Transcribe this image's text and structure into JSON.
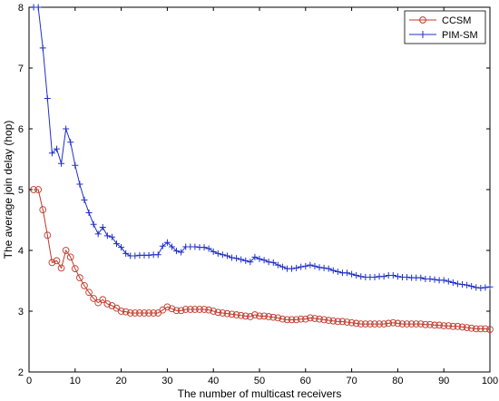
{
  "chart_data": {
    "type": "line",
    "title": "",
    "xlabel": "The number of multicast receivers",
    "ylabel": "The average join delay (hop)",
    "xlim": [
      0,
      100
    ],
    "ylim": [
      2,
      8
    ],
    "xticks": [
      0,
      10,
      20,
      30,
      40,
      50,
      60,
      70,
      80,
      90,
      100
    ],
    "yticks": [
      2,
      3,
      4,
      5,
      6,
      7,
      8
    ],
    "grid": false,
    "legend_position": "top-right",
    "colors": {
      "CCSM": "#c0392b",
      "PIM-SM": "#1f2fc8"
    },
    "series": [
      {
        "name": "CCSM",
        "marker": "circle",
        "x": [
          1,
          2,
          3,
          4,
          5,
          6,
          7,
          8,
          9,
          10,
          11,
          12,
          13,
          14,
          15,
          16,
          17,
          18,
          19,
          20,
          21,
          22,
          23,
          24,
          25,
          26,
          27,
          28,
          29,
          30,
          31,
          32,
          33,
          34,
          35,
          36,
          37,
          38,
          39,
          40,
          41,
          42,
          43,
          44,
          45,
          46,
          47,
          48,
          49,
          50,
          51,
          52,
          53,
          54,
          55,
          56,
          57,
          58,
          59,
          60,
          61,
          62,
          63,
          64,
          65,
          66,
          67,
          68,
          69,
          70,
          71,
          72,
          73,
          74,
          75,
          76,
          77,
          78,
          79,
          80,
          81,
          82,
          83,
          84,
          85,
          86,
          87,
          88,
          89,
          90,
          91,
          92,
          93,
          94,
          95,
          96,
          97,
          98,
          99,
          100
        ],
        "values": [
          5.0,
          5.0,
          4.67,
          4.25,
          3.8,
          3.83,
          3.71,
          4.0,
          3.89,
          3.7,
          3.55,
          3.42,
          3.31,
          3.21,
          3.14,
          3.19,
          3.12,
          3.09,
          3.05,
          3.0,
          2.99,
          2.97,
          2.97,
          2.97,
          2.97,
          2.97,
          2.97,
          2.97,
          3.02,
          3.07,
          3.04,
          3.01,
          3.01,
          3.03,
          3.03,
          3.03,
          3.03,
          3.03,
          3.02,
          3.0,
          2.98,
          2.97,
          2.96,
          2.95,
          2.94,
          2.93,
          2.92,
          2.91,
          2.94,
          2.92,
          2.92,
          2.91,
          2.9,
          2.89,
          2.87,
          2.86,
          2.86,
          2.86,
          2.87,
          2.87,
          2.89,
          2.88,
          2.87,
          2.86,
          2.85,
          2.84,
          2.83,
          2.83,
          2.82,
          2.81,
          2.8,
          2.79,
          2.79,
          2.79,
          2.79,
          2.79,
          2.79,
          2.8,
          2.81,
          2.8,
          2.79,
          2.79,
          2.79,
          2.79,
          2.79,
          2.78,
          2.78,
          2.77,
          2.77,
          2.76,
          2.76,
          2.75,
          2.75,
          2.74,
          2.73,
          2.72,
          2.71,
          2.71,
          2.71,
          2.7
        ]
      },
      {
        "name": "PIM-SM",
        "marker": "plus",
        "x": [
          1,
          2,
          3,
          4,
          5,
          6,
          7,
          8,
          9,
          10,
          11,
          12,
          13,
          14,
          15,
          16,
          17,
          18,
          19,
          20,
          21,
          22,
          23,
          24,
          25,
          26,
          27,
          28,
          29,
          30,
          31,
          32,
          33,
          34,
          35,
          36,
          37,
          38,
          39,
          40,
          41,
          42,
          43,
          44,
          45,
          46,
          47,
          48,
          49,
          50,
          51,
          52,
          53,
          54,
          55,
          56,
          57,
          58,
          59,
          60,
          61,
          62,
          63,
          64,
          65,
          66,
          67,
          68,
          69,
          70,
          71,
          72,
          73,
          74,
          75,
          76,
          77,
          78,
          79,
          80,
          81,
          82,
          83,
          84,
          85,
          86,
          87,
          88,
          89,
          90,
          91,
          92,
          93,
          94,
          95,
          96,
          97,
          98,
          99,
          100
        ],
        "values": [
          8.0,
          8.0,
          7.33,
          6.5,
          5.6,
          5.67,
          5.43,
          6.0,
          5.78,
          5.4,
          5.09,
          4.83,
          4.62,
          4.43,
          4.27,
          4.38,
          4.24,
          4.22,
          4.11,
          4.05,
          3.95,
          3.91,
          3.91,
          3.92,
          3.92,
          3.92,
          3.93,
          3.93,
          4.07,
          4.13,
          4.06,
          3.99,
          3.97,
          4.06,
          4.06,
          4.06,
          4.05,
          4.05,
          4.03,
          3.98,
          3.95,
          3.93,
          3.91,
          3.88,
          3.87,
          3.85,
          3.83,
          3.81,
          3.89,
          3.86,
          3.84,
          3.81,
          3.8,
          3.76,
          3.73,
          3.7,
          3.7,
          3.71,
          3.73,
          3.74,
          3.76,
          3.74,
          3.72,
          3.71,
          3.7,
          3.67,
          3.65,
          3.63,
          3.63,
          3.61,
          3.59,
          3.57,
          3.56,
          3.56,
          3.56,
          3.57,
          3.57,
          3.59,
          3.59,
          3.57,
          3.56,
          3.56,
          3.55,
          3.55,
          3.55,
          3.53,
          3.53,
          3.52,
          3.51,
          3.51,
          3.49,
          3.47,
          3.45,
          3.44,
          3.43,
          3.41,
          3.39,
          3.38,
          3.39,
          3.4
        ]
      }
    ]
  }
}
